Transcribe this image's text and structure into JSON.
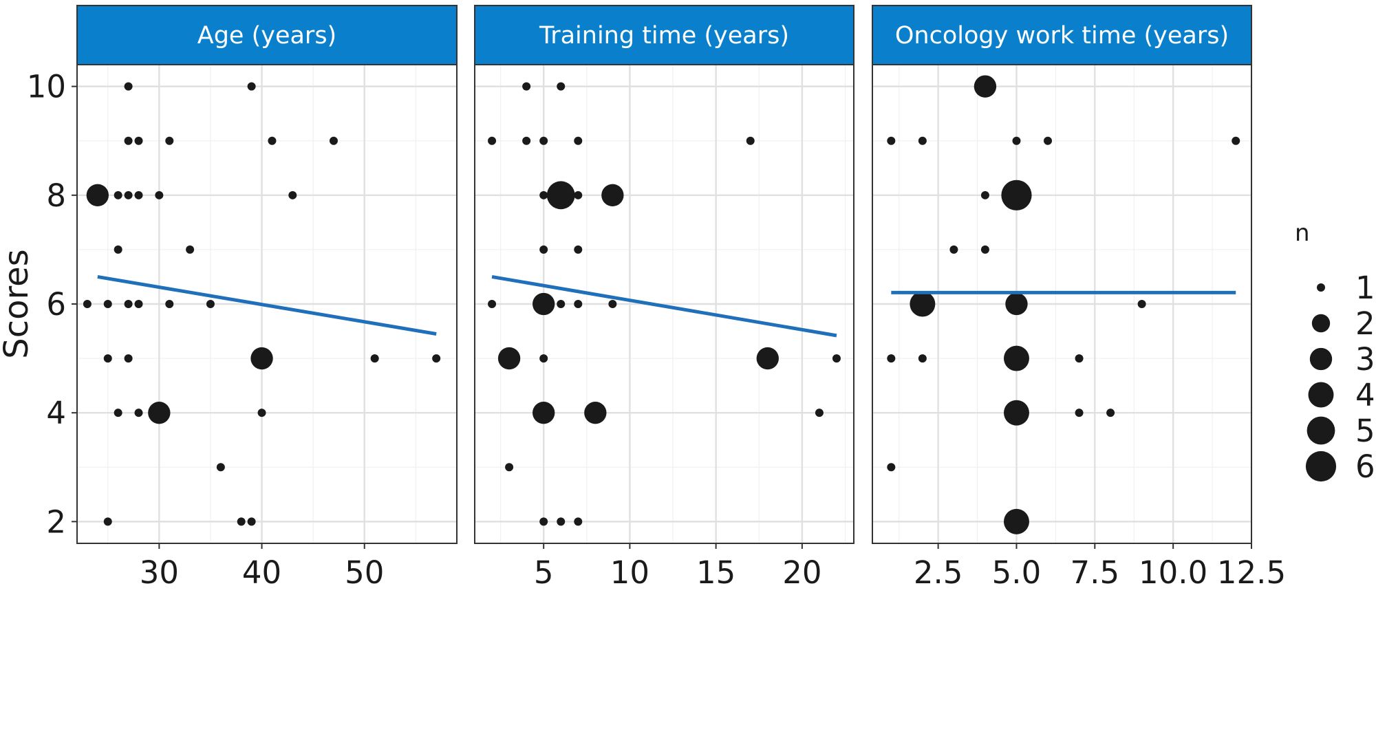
{
  "chart_data": {
    "type": "scatter",
    "ylabel": "Scores",
    "ylim": [
      1.6,
      10.4
    ],
    "yticks": [
      "2",
      "4",
      "6",
      "8",
      "10"
    ],
    "ytick_values": [
      2,
      4,
      6,
      8,
      10
    ],
    "marker_color": "#1a1a1a",
    "line_color": "#1f6fba",
    "strip_color": "#0a80cc",
    "legend": {
      "title": "n",
      "placement": "right",
      "entries": [
        "1",
        "2",
        "3",
        "4",
        "5",
        "6"
      ],
      "values": [
        1,
        2,
        3,
        4,
        5,
        6
      ]
    },
    "panels": [
      {
        "title": "Age (years)",
        "xlim": [
          22,
          59
        ],
        "xticks": [
          "30",
          "40",
          "50"
        ],
        "xtick_values": [
          30,
          40,
          50
        ],
        "points": [
          {
            "x": 27,
            "y": 10,
            "n": 1
          },
          {
            "x": 39,
            "y": 10,
            "n": 1
          },
          {
            "x": 27,
            "y": 9,
            "n": 1
          },
          {
            "x": 28,
            "y": 9,
            "n": 1
          },
          {
            "x": 31,
            "y": 9,
            "n": 1
          },
          {
            "x": 41,
            "y": 9,
            "n": 1
          },
          {
            "x": 47,
            "y": 9,
            "n": 1
          },
          {
            "x": 24,
            "y": 8,
            "n": 3
          },
          {
            "x": 26,
            "y": 8,
            "n": 1
          },
          {
            "x": 27,
            "y": 8,
            "n": 1
          },
          {
            "x": 28,
            "y": 8,
            "n": 1
          },
          {
            "x": 30,
            "y": 8,
            "n": 1
          },
          {
            "x": 43,
            "y": 8,
            "n": 1
          },
          {
            "x": 26,
            "y": 7,
            "n": 1
          },
          {
            "x": 33,
            "y": 7,
            "n": 1
          },
          {
            "x": 23,
            "y": 6,
            "n": 1
          },
          {
            "x": 25,
            "y": 6,
            "n": 1
          },
          {
            "x": 27,
            "y": 6,
            "n": 1
          },
          {
            "x": 28,
            "y": 6,
            "n": 1
          },
          {
            "x": 31,
            "y": 6,
            "n": 1
          },
          {
            "x": 35,
            "y": 6,
            "n": 1
          },
          {
            "x": 25,
            "y": 5,
            "n": 1
          },
          {
            "x": 27,
            "y": 5,
            "n": 1
          },
          {
            "x": 40,
            "y": 5,
            "n": 3
          },
          {
            "x": 51,
            "y": 5,
            "n": 1
          },
          {
            "x": 57,
            "y": 5,
            "n": 1
          },
          {
            "x": 26,
            "y": 4,
            "n": 1
          },
          {
            "x": 28,
            "y": 4,
            "n": 1
          },
          {
            "x": 30,
            "y": 4,
            "n": 3
          },
          {
            "x": 40,
            "y": 4,
            "n": 1
          },
          {
            "x": 36,
            "y": 3,
            "n": 1
          },
          {
            "x": 25,
            "y": 2,
            "n": 1
          },
          {
            "x": 38,
            "y": 2,
            "n": 1
          },
          {
            "x": 39,
            "y": 2,
            "n": 1
          }
        ],
        "fit": {
          "x": [
            24,
            57
          ],
          "y": [
            6.5,
            5.45
          ]
        }
      },
      {
        "title": "Training time (years)",
        "xlim": [
          1,
          23
        ],
        "xticks": [
          "5",
          "10",
          "15",
          "20"
        ],
        "xtick_values": [
          5,
          10,
          15,
          20
        ],
        "points": [
          {
            "x": 4,
            "y": 10,
            "n": 1
          },
          {
            "x": 6,
            "y": 10,
            "n": 1
          },
          {
            "x": 2,
            "y": 9,
            "n": 1
          },
          {
            "x": 4,
            "y": 9,
            "n": 1
          },
          {
            "x": 5,
            "y": 9,
            "n": 1
          },
          {
            "x": 7,
            "y": 9,
            "n": 1
          },
          {
            "x": 17,
            "y": 9,
            "n": 1
          },
          {
            "x": 5,
            "y": 8,
            "n": 1
          },
          {
            "x": 6,
            "y": 8,
            "n": 5
          },
          {
            "x": 7,
            "y": 8,
            "n": 1
          },
          {
            "x": 9,
            "y": 8,
            "n": 3
          },
          {
            "x": 5,
            "y": 7,
            "n": 1
          },
          {
            "x": 7,
            "y": 7,
            "n": 1
          },
          {
            "x": 2,
            "y": 6,
            "n": 1
          },
          {
            "x": 5,
            "y": 6,
            "n": 3
          },
          {
            "x": 6,
            "y": 6,
            "n": 1
          },
          {
            "x": 7,
            "y": 6,
            "n": 1
          },
          {
            "x": 9,
            "y": 6,
            "n": 1
          },
          {
            "x": 3,
            "y": 5,
            "n": 3
          },
          {
            "x": 5,
            "y": 5,
            "n": 1
          },
          {
            "x": 18,
            "y": 5,
            "n": 3
          },
          {
            "x": 22,
            "y": 5,
            "n": 1
          },
          {
            "x": 5,
            "y": 4,
            "n": 3
          },
          {
            "x": 8,
            "y": 4,
            "n": 3
          },
          {
            "x": 21,
            "y": 4,
            "n": 1
          },
          {
            "x": 3,
            "y": 3,
            "n": 1
          },
          {
            "x": 5,
            "y": 2,
            "n": 1
          },
          {
            "x": 6,
            "y": 2,
            "n": 1
          },
          {
            "x": 7,
            "y": 2,
            "n": 1
          }
        ],
        "fit": {
          "x": [
            2,
            22
          ],
          "y": [
            6.5,
            5.42
          ]
        }
      },
      {
        "title": "Oncology work time (years)",
        "xlim": [
          0.4,
          12.5
        ],
        "xticks": [
          "2.5",
          "5.0",
          "7.5",
          "10.0",
          "12.5"
        ],
        "xtick_values": [
          2.5,
          5,
          7.5,
          10,
          12.5
        ],
        "points": [
          {
            "x": 4,
            "y": 10,
            "n": 3
          },
          {
            "x": 1,
            "y": 9,
            "n": 1
          },
          {
            "x": 2,
            "y": 9,
            "n": 1
          },
          {
            "x": 5,
            "y": 9,
            "n": 1
          },
          {
            "x": 6,
            "y": 9,
            "n": 1
          },
          {
            "x": 12,
            "y": 9,
            "n": 1
          },
          {
            "x": 4,
            "y": 8,
            "n": 1
          },
          {
            "x": 5,
            "y": 8,
            "n": 6
          },
          {
            "x": 3,
            "y": 7,
            "n": 1
          },
          {
            "x": 4,
            "y": 7,
            "n": 1
          },
          {
            "x": 2,
            "y": 6,
            "n": 4
          },
          {
            "x": 5,
            "y": 6,
            "n": 3
          },
          {
            "x": 9,
            "y": 6,
            "n": 1
          },
          {
            "x": 1,
            "y": 5,
            "n": 1
          },
          {
            "x": 2,
            "y": 5,
            "n": 1
          },
          {
            "x": 5,
            "y": 5,
            "n": 4
          },
          {
            "x": 7,
            "y": 5,
            "n": 1
          },
          {
            "x": 5,
            "y": 4,
            "n": 4
          },
          {
            "x": 7,
            "y": 4,
            "n": 1
          },
          {
            "x": 8,
            "y": 4,
            "n": 1
          },
          {
            "x": 1,
            "y": 3,
            "n": 1
          },
          {
            "x": 5,
            "y": 2,
            "n": 4
          }
        ],
        "fit": {
          "x": [
            1,
            12
          ],
          "y": [
            6.21,
            6.21
          ]
        }
      }
    ]
  }
}
